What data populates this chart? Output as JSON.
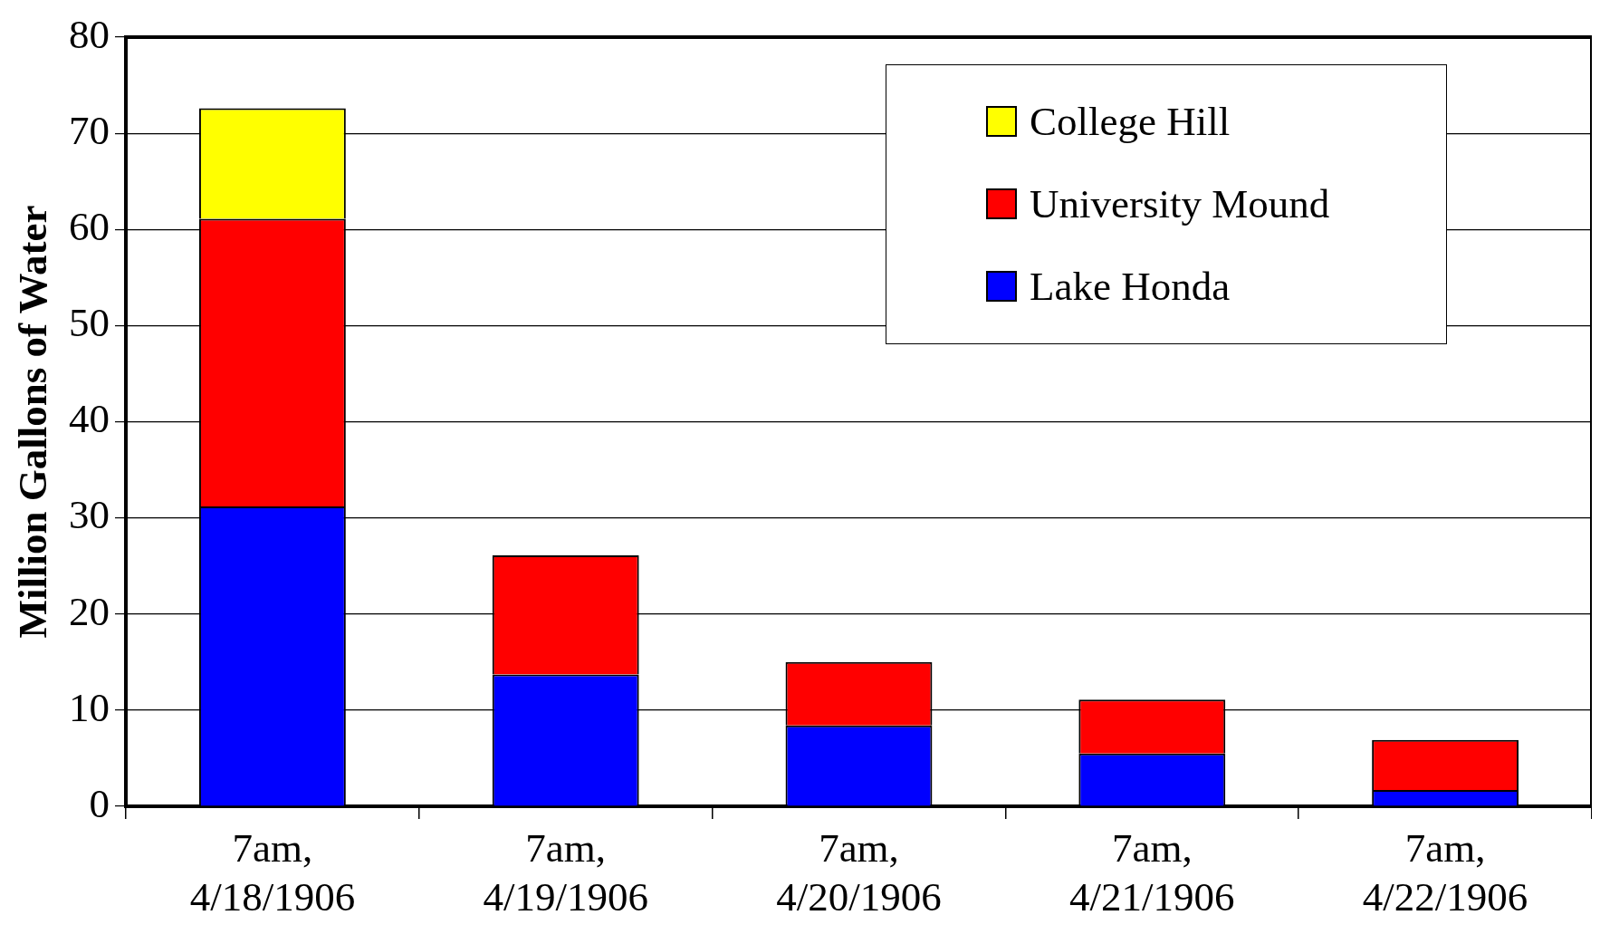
{
  "chart_data": {
    "type": "bar",
    "ylabel": "Million Gallons of Water",
    "stacked": true,
    "categories": [
      "7am, 4/18/1906",
      "7am, 4/19/1906",
      "7am, 4/20/1906",
      "7am, 4/21/1906",
      "7am, 4/22/1906"
    ],
    "series": [
      {
        "name": "Lake Honda",
        "color": "#0000ff",
        "values": [
          31.2,
          13.7,
          8.4,
          5.5,
          1.7
        ]
      },
      {
        "name": "University Mound",
        "color": "#ff0000",
        "values": [
          29.9,
          12.4,
          6.6,
          5.6,
          5.2
        ]
      },
      {
        "name": "College Hill",
        "color": "#ffff00",
        "values": [
          11.5,
          null,
          null,
          null,
          null
        ]
      }
    ],
    "ylim": [
      0,
      80
    ],
    "yticks": [
      0,
      10,
      20,
      30,
      40,
      50,
      60,
      70,
      80
    ],
    "grid": "y",
    "legend": "top right"
  }
}
